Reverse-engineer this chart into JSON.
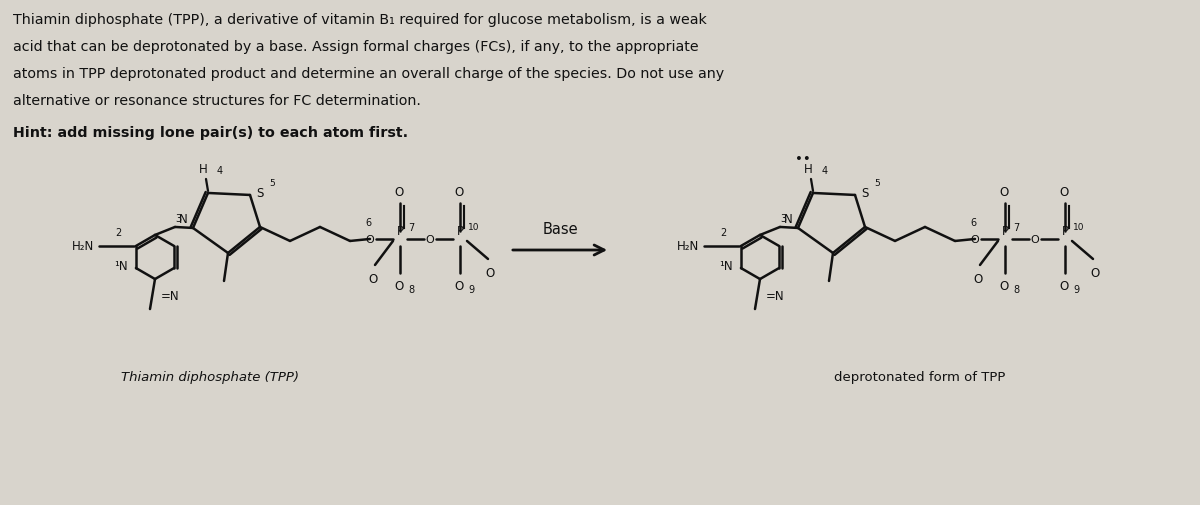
{
  "bg_color": "#d8d4cc",
  "text_color": "#111111",
  "title_line1": "Thiamin diphosphate (TPP), a derivative of vitamin B₁ required for glucose metabolism, is a weak",
  "title_line2": "acid that can be deprotonated by a base. Assign formal charges (FCs), if any, to the appropriate",
  "title_line3": "atoms in TPP deprotonated product and determine an overall charge of the species. Do not use any",
  "title_line4": "alternative or resonance structures for FC determination.",
  "hint": "Hint: add missing lone pair(s) to each atom first.",
  "label_tpp": "Thiamin diphosphate (TPP)",
  "label_deprot": "deprotonated form of TPP",
  "arrow_label": "Base",
  "fig_width": 12.0,
  "fig_height": 5.06
}
